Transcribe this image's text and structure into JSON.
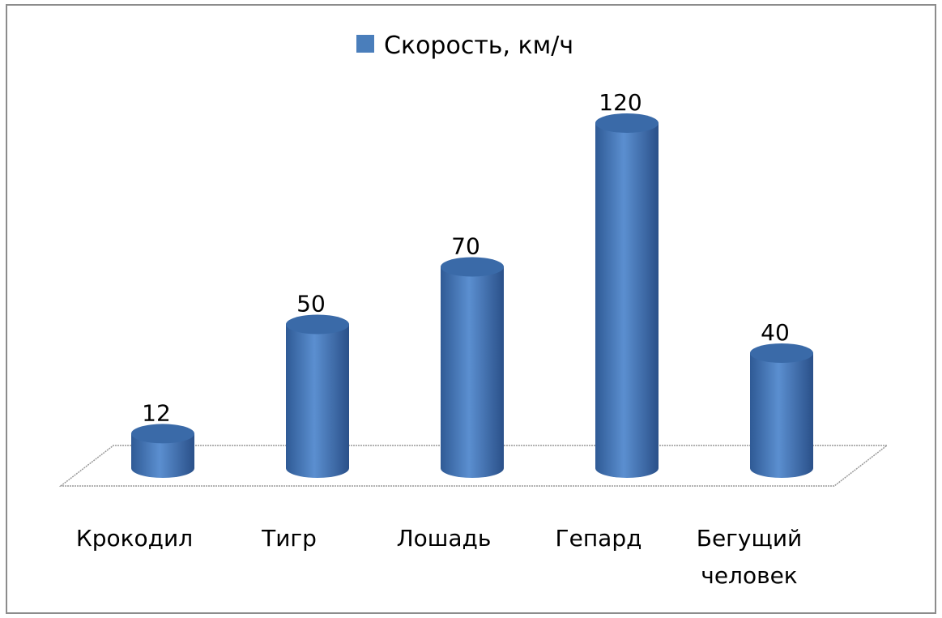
{
  "chart_data": {
    "type": "bar3d",
    "categories": [
      "Крокодил",
      "Тигр",
      "Лошадь",
      "Гепард",
      "Бегущий человек"
    ],
    "series": [
      {
        "name": "Скорость, км/ч",
        "color": "#4a7ebb",
        "values": [
          12,
          50,
          70,
          120,
          40
        ]
      }
    ],
    "legend": "top"
  }
}
